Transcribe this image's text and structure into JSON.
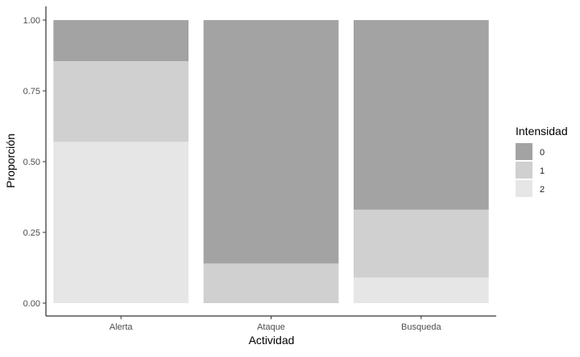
{
  "chart_data": {
    "type": "bar",
    "stacked": true,
    "normalized": true,
    "xlabel": "Actividad",
    "ylabel": "Proporción",
    "categories": [
      "Alerta",
      "Ataque",
      "Busqueda"
    ],
    "ylim": [
      0,
      1
    ],
    "yticks": [
      "0.00",
      "0.25",
      "0.50",
      "0.75",
      "1.00"
    ],
    "ytick_values": [
      0,
      0.25,
      0.5,
      0.75,
      1
    ],
    "legend": {
      "title": "Intensidad",
      "position": "right"
    },
    "series": [
      {
        "name": "2",
        "color": "#e6e6e6",
        "values": [
          0.57,
          0.0,
          0.09
        ]
      },
      {
        "name": "1",
        "color": "#d0d0d0",
        "values": [
          0.285,
          0.14,
          0.24
        ]
      },
      {
        "name": "0",
        "color": "#a3a3a3",
        "values": [
          0.145,
          0.86,
          0.67
        ]
      }
    ],
    "legend_order": [
      "0",
      "1",
      "2"
    ],
    "grid": false
  }
}
